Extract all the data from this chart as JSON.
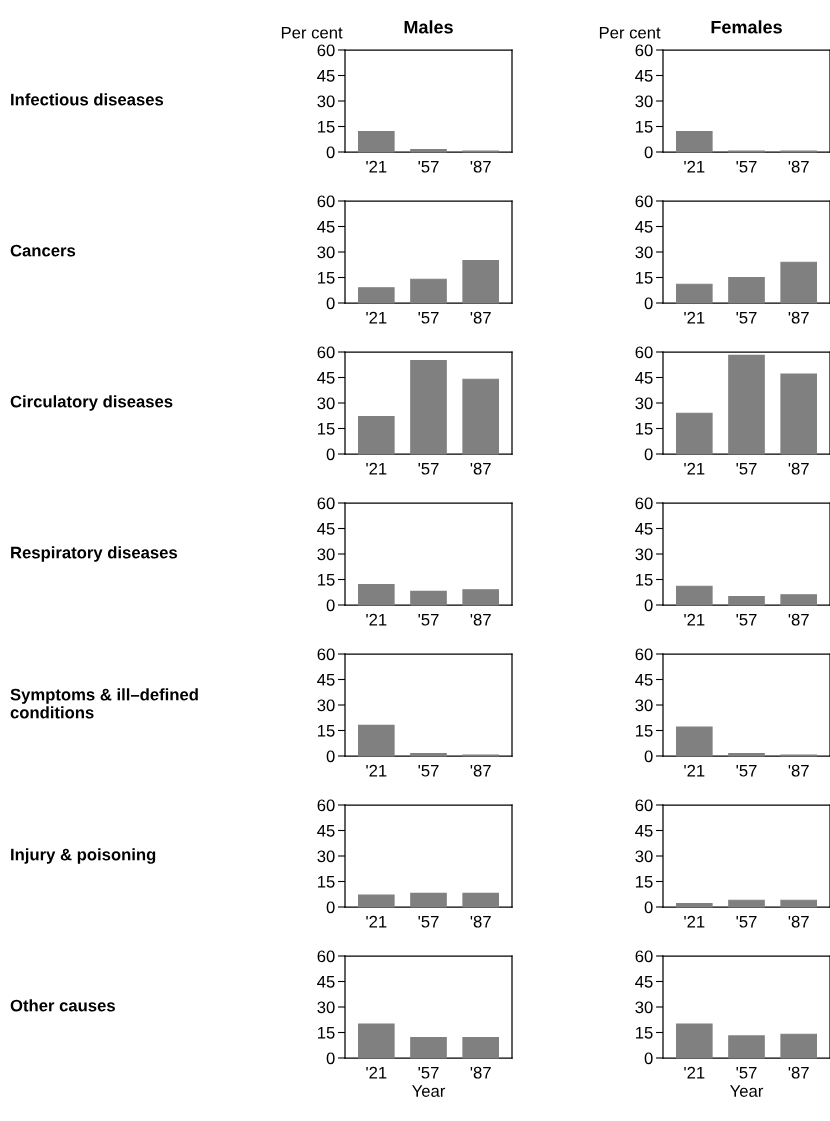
{
  "chart_data": [
    {
      "type": "bar",
      "title": "Males",
      "ylabel": "Per cent",
      "annotations": [
        "Infectious diseases"
      ],
      "categories": [
        "'21",
        "'57",
        "'87"
      ],
      "values": [
        12,
        1.5,
        0.5
      ],
      "color": "#808080",
      "ylim": [
        0,
        60
      ],
      "yticks": [
        0,
        15,
        30,
        45,
        60
      ],
      "grid": false
    },
    {
      "type": "bar",
      "title": "Females",
      "ylabel": "Per cent",
      "categories": [
        "'21",
        "'57",
        "'87"
      ],
      "values": [
        12,
        0.5,
        0.5
      ],
      "color": "#808080",
      "ylim": [
        0,
        60
      ],
      "yticks": [
        0,
        15,
        30,
        45,
        60
      ],
      "grid": false
    },
    {
      "type": "bar",
      "annotations": [
        "Cancers"
      ],
      "categories": [
        "'21",
        "'57",
        "'87"
      ],
      "values": [
        9,
        14,
        25
      ],
      "color": "#808080",
      "ylim": [
        0,
        60
      ],
      "yticks": [
        0,
        15,
        30,
        45,
        60
      ],
      "grid": false
    },
    {
      "type": "bar",
      "categories": [
        "'21",
        "'57",
        "'87"
      ],
      "values": [
        11,
        15,
        24
      ],
      "color": "#808080",
      "ylim": [
        0,
        60
      ],
      "yticks": [
        0,
        15,
        30,
        45,
        60
      ],
      "grid": false
    },
    {
      "type": "bar",
      "annotations": [
        "Circulatory diseases"
      ],
      "categories": [
        "'21",
        "'57",
        "'87"
      ],
      "values": [
        22,
        55,
        44
      ],
      "color": "#808080",
      "ylim": [
        0,
        60
      ],
      "yticks": [
        0,
        15,
        30,
        45,
        60
      ],
      "grid": false
    },
    {
      "type": "bar",
      "categories": [
        "'21",
        "'57",
        "'87"
      ],
      "values": [
        24,
        58,
        47
      ],
      "color": "#808080",
      "ylim": [
        0,
        60
      ],
      "yticks": [
        0,
        15,
        30,
        45,
        60
      ],
      "grid": false
    },
    {
      "type": "bar",
      "annotations": [
        "Respiratory diseases"
      ],
      "categories": [
        "'21",
        "'57",
        "'87"
      ],
      "values": [
        12,
        8,
        9
      ],
      "color": "#808080",
      "ylim": [
        0,
        60
      ],
      "yticks": [
        0,
        15,
        30,
        45,
        60
      ],
      "grid": false
    },
    {
      "type": "bar",
      "categories": [
        "'21",
        "'57",
        "'87"
      ],
      "values": [
        11,
        5,
        6
      ],
      "color": "#808080",
      "ylim": [
        0,
        60
      ],
      "yticks": [
        0,
        15,
        30,
        45,
        60
      ],
      "grid": false
    },
    {
      "type": "bar",
      "annotations": [
        "Symptoms & ill–defined\nconditions"
      ],
      "categories": [
        "'21",
        "'57",
        "'87"
      ],
      "values": [
        18,
        1.5,
        0.5
      ],
      "color": "#808080",
      "ylim": [
        0,
        60
      ],
      "yticks": [
        0,
        15,
        30,
        45,
        60
      ],
      "grid": false
    },
    {
      "type": "bar",
      "categories": [
        "'21",
        "'57",
        "'87"
      ],
      "values": [
        17,
        1.5,
        0.5
      ],
      "color": "#808080",
      "ylim": [
        0,
        60
      ],
      "yticks": [
        0,
        15,
        30,
        45,
        60
      ],
      "grid": false
    },
    {
      "type": "bar",
      "annotations": [
        "Injury & poisoning"
      ],
      "categories": [
        "'21",
        "'57",
        "'87"
      ],
      "values": [
        7,
        8,
        8
      ],
      "color": "#808080",
      "ylim": [
        0,
        60
      ],
      "yticks": [
        0,
        15,
        30,
        45,
        60
      ],
      "grid": false
    },
    {
      "type": "bar",
      "categories": [
        "'21",
        "'57",
        "'87"
      ],
      "values": [
        2,
        4,
        4
      ],
      "color": "#808080",
      "ylim": [
        0,
        60
      ],
      "yticks": [
        0,
        15,
        30,
        45,
        60
      ],
      "grid": false
    },
    {
      "type": "bar",
      "annotations": [
        "Other causes"
      ],
      "xlabel": "Year",
      "categories": [
        "'21",
        "'57",
        "'87"
      ],
      "values": [
        20,
        12,
        12
      ],
      "color": "#808080",
      "ylim": [
        0,
        60
      ],
      "yticks": [
        0,
        15,
        30,
        45,
        60
      ],
      "grid": false
    },
    {
      "type": "bar",
      "xlabel": "Year",
      "categories": [
        "'21",
        "'57",
        "'87"
      ],
      "values": [
        20,
        13,
        14
      ],
      "color": "#808080",
      "ylim": [
        0,
        60
      ],
      "yticks": [
        0,
        15,
        30,
        45,
        60
      ],
      "grid": false
    }
  ]
}
